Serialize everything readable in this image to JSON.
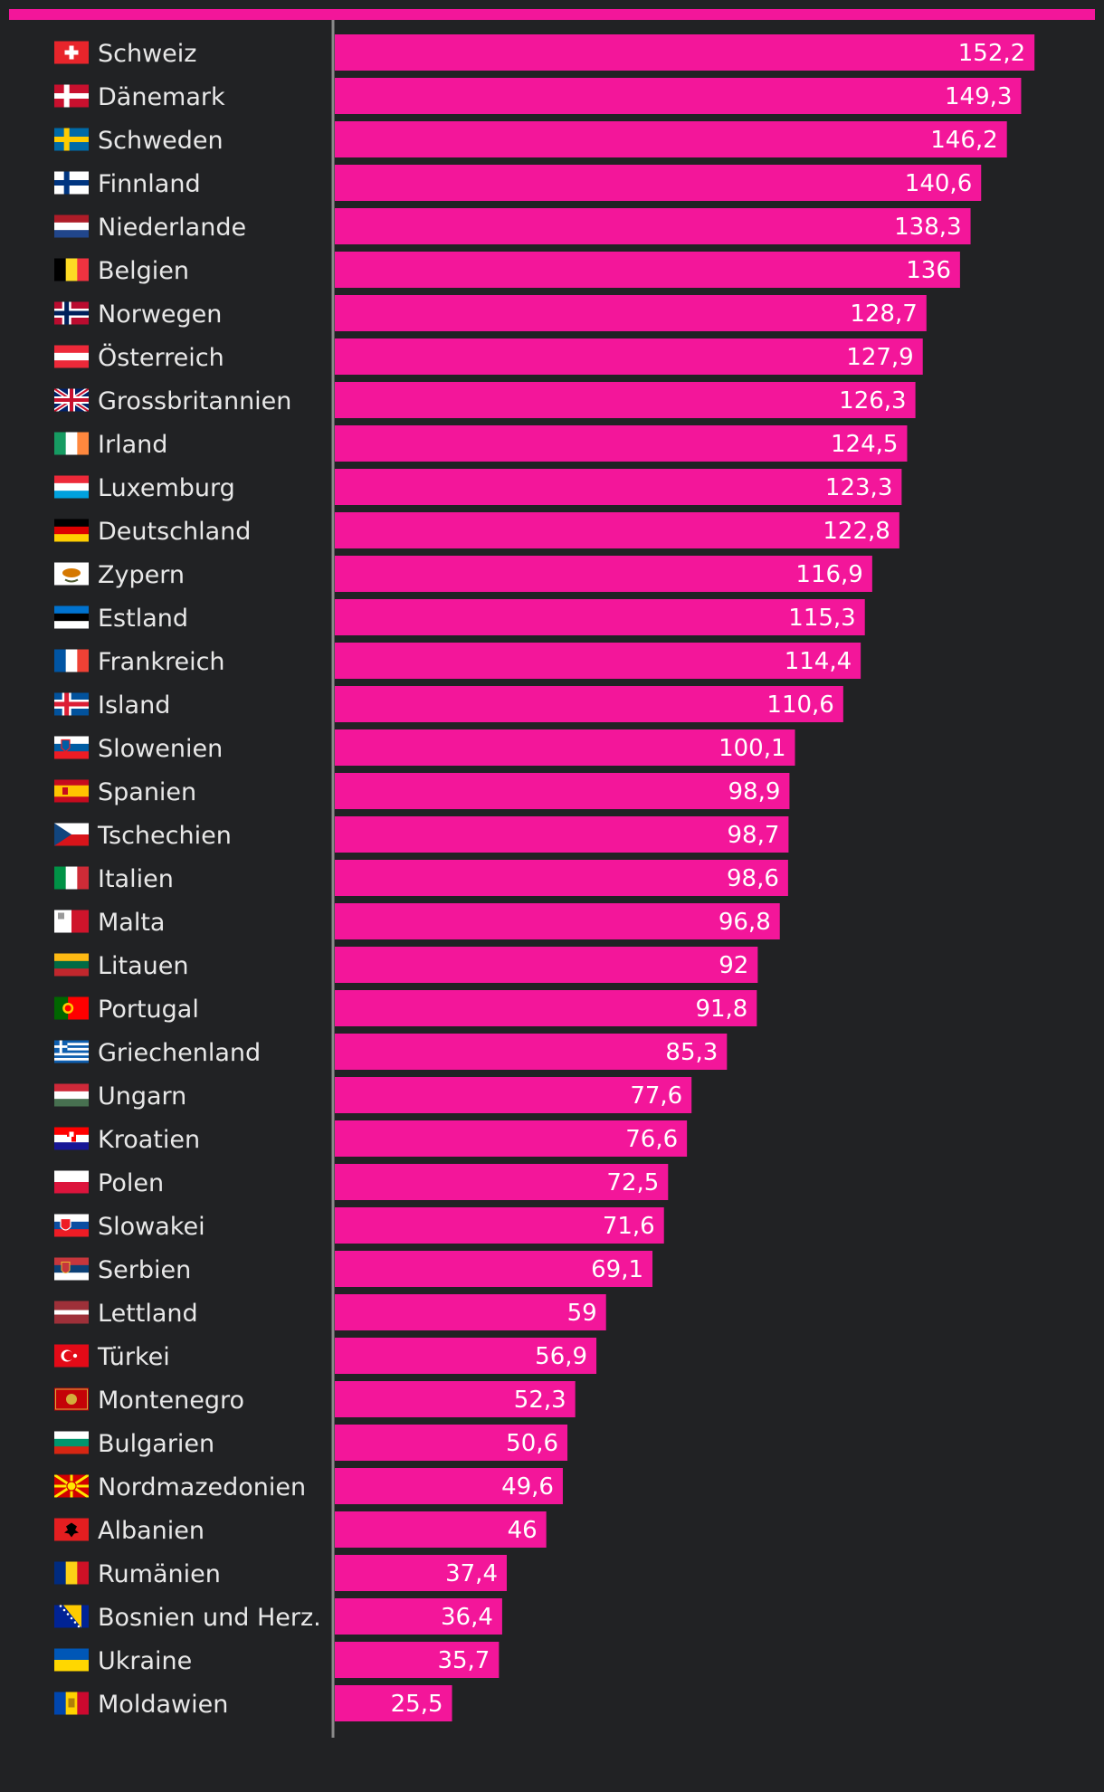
{
  "colors": {
    "bar": "#f3169a",
    "background": "#212224",
    "axis": "#8a8a8a",
    "label": "#e8e8e8"
  },
  "chart_data": {
    "type": "bar",
    "orientation": "horizontal",
    "title": "",
    "xlabel": "",
    "ylabel": "",
    "xlim": [
      0,
      156
    ],
    "grid": false,
    "categories": [
      "Schweiz",
      "Dänemark",
      "Schweden",
      "Finnland",
      "Niederlande",
      "Belgien",
      "Norwegen",
      "Österreich",
      "Grossbritannien",
      "Irland",
      "Luxemburg",
      "Deutschland",
      "Zypern",
      "Estland",
      "Frankreich",
      "Island",
      "Slowenien",
      "Spanien",
      "Tschechien",
      "Italien",
      "Malta",
      "Litauen",
      "Portugal",
      "Griechenland",
      "Ungarn",
      "Kroatien",
      "Polen",
      "Slowakei",
      "Serbien",
      "Lettland",
      "Türkei",
      "Montenegro",
      "Bulgarien",
      "Nordmazedonien",
      "Albanien",
      "Rumänien",
      "Bosnien und Herz.",
      "Ukraine",
      "Moldawien"
    ],
    "values": [
      152.2,
      149.3,
      146.2,
      140.6,
      138.3,
      136,
      128.7,
      127.9,
      126.3,
      124.5,
      123.3,
      122.8,
      116.9,
      115.3,
      114.4,
      110.6,
      100.1,
      98.9,
      98.7,
      98.6,
      96.8,
      92,
      91.8,
      85.3,
      77.6,
      76.6,
      72.5,
      71.6,
      69.1,
      59,
      56.9,
      52.3,
      50.6,
      49.6,
      46,
      37.4,
      36.4,
      35.7,
      25.5
    ],
    "value_labels": [
      "152,2",
      "149,3",
      "146,2",
      "140,6",
      "138,3",
      "136",
      "128,7",
      "127,9",
      "126,3",
      "124,5",
      "123,3",
      "122,8",
      "116,9",
      "115,3",
      "114,4",
      "110,6",
      "100,1",
      "98,9",
      "98,7",
      "98,6",
      "96,8",
      "92",
      "91,8",
      "85,3",
      "77,6",
      "76,6",
      "72,5",
      "71,6",
      "69,1",
      "59",
      "56,9",
      "52,3",
      "50,6",
      "49,6",
      "46",
      "37,4",
      "36,4",
      "35,7",
      "25,5"
    ],
    "flags": [
      "ch",
      "dk",
      "se",
      "fi",
      "nl",
      "be",
      "no",
      "at",
      "gb",
      "ie",
      "lu",
      "de",
      "cy",
      "ee",
      "fr",
      "is",
      "si",
      "es",
      "cz",
      "it",
      "mt",
      "lt",
      "pt",
      "gr",
      "hu",
      "hr",
      "pl",
      "sk",
      "rs",
      "lv",
      "tr",
      "me",
      "bg",
      "mk",
      "al",
      "ro",
      "ba",
      "ua",
      "md"
    ]
  }
}
